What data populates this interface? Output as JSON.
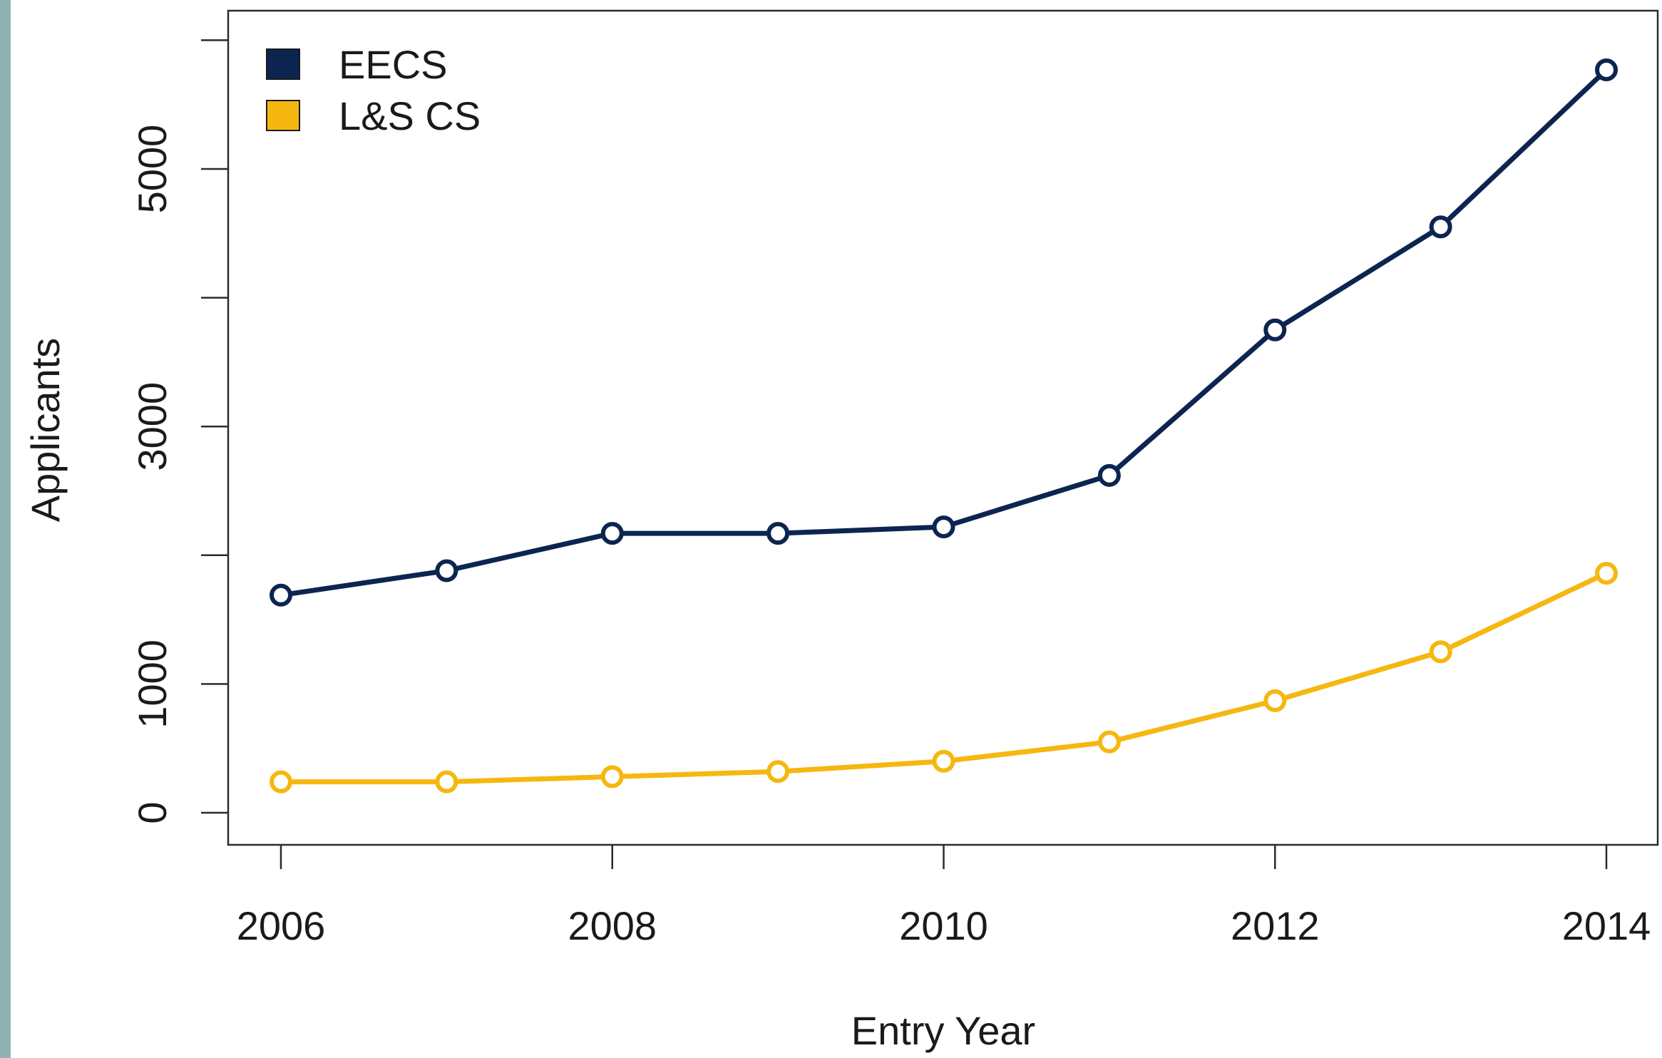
{
  "strip_color": "#8fb3b4",
  "chart_data": {
    "type": "line",
    "title": "",
    "xlabel": "Entry Year",
    "ylabel": "Applicants",
    "x": [
      2006,
      2007,
      2008,
      2009,
      2010,
      2011,
      2012,
      2013,
      2014
    ],
    "xlim": [
      2006,
      2014
    ],
    "ylim": [
      0,
      5500
    ],
    "x_ticks": [
      "2006",
      "2008",
      "2010",
      "2012",
      "2014"
    ],
    "y_ticks": [
      "0",
      "1000",
      "3000",
      "5000"
    ],
    "y_minor_ticks": [
      2000,
      4000,
      6000
    ],
    "grid": false,
    "legend_position": "top-left",
    "series": [
      {
        "name": "EECS",
        "color": "#0c2550",
        "values": [
          1690,
          1880,
          2170,
          2170,
          2220,
          2620,
          3750,
          4550,
          5770
        ]
      },
      {
        "name": "L&S CS",
        "color": "#f5b710",
        "values": [
          240,
          240,
          280,
          320,
          400,
          550,
          870,
          1250,
          1860
        ]
      }
    ]
  }
}
